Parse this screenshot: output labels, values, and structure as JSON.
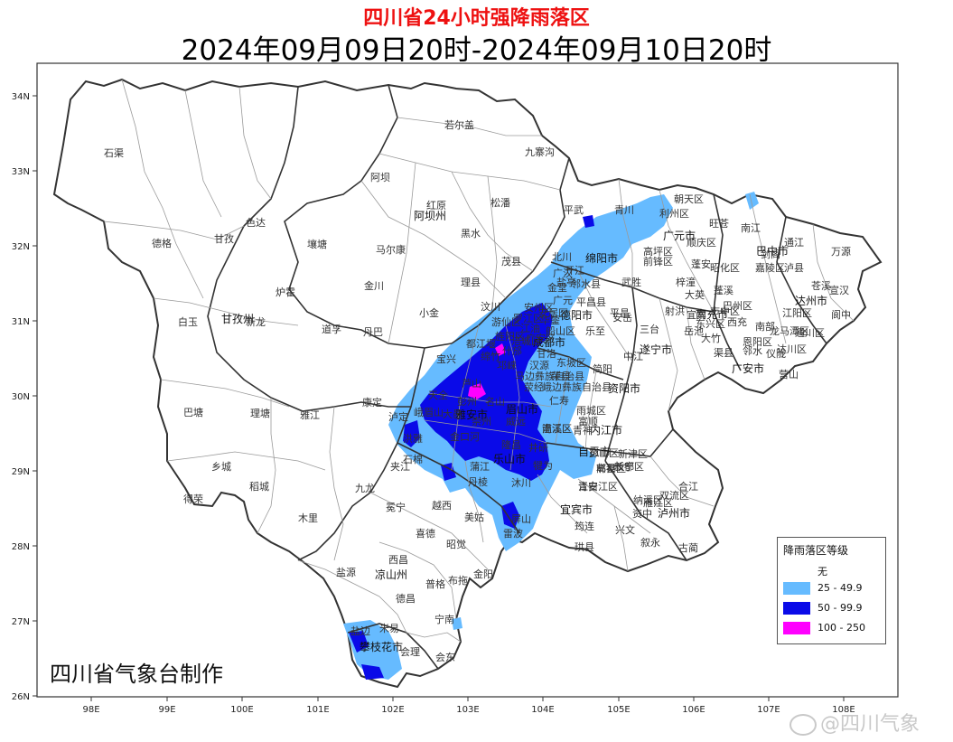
{
  "title": "四川省24小时强降雨落区",
  "subtitle": "2024年09月09日20时-2024年09月10日20时",
  "credit": "四川省气象台制作",
  "watermark": "@四川气象",
  "legend": {
    "title": "降雨落区等级",
    "items": [
      {
        "label": "无",
        "color": "#ffffff"
      },
      {
        "label": "25 - 49.9",
        "color": "#66bbff"
      },
      {
        "label": "50 - 99.9",
        "color": "#0a0ae8"
      },
      {
        "label": "100 - 250",
        "color": "#ff00ff"
      }
    ]
  },
  "axes": {
    "x_ticks": [
      "98E",
      "99E",
      "100E",
      "101E",
      "102E",
      "103E",
      "104E",
      "105E",
      "106E",
      "107E",
      "108E"
    ],
    "y_ticks": [
      "34N",
      "33N",
      "32N",
      "31N",
      "30N",
      "29N",
      "28N",
      "27N",
      "26N"
    ]
  },
  "prefecture_labels": [
    "阿坝州",
    "甘孜州",
    "绵阳市",
    "德阳市",
    "成都市",
    "眉山市",
    "乐山市",
    "资阳市",
    "内江市",
    "自贡市",
    "宜宾市",
    "泸州市",
    "遂宁市",
    "南充市",
    "广安市",
    "达州市",
    "巴中市",
    "广元市",
    "凉山州",
    "攀枝花市",
    "雅安市"
  ],
  "county_labels": [
    "若尔盖",
    "石渠",
    "九寨沟",
    "阿坝",
    "红原",
    "松潘",
    "色达",
    "德格",
    "甘孜",
    "壤塘",
    "马尔康",
    "黑水",
    "平武",
    "青川",
    "朝天区",
    "利州区",
    "旺苍",
    "南江",
    "通江",
    "万源",
    "宣汉",
    "茂县",
    "北川",
    "金川",
    "理县",
    "汶川",
    "炉霍",
    "道孚",
    "丹巴",
    "小金",
    "白玉",
    "新龙",
    "巴塘",
    "理塘",
    "雅江",
    "康定",
    "宝兴",
    "芦山",
    "泸定",
    "石棉",
    "天全",
    "名山",
    "乡城",
    "稻城",
    "得荣",
    "九龙",
    "木里",
    "冕宁",
    "越西",
    "美姑",
    "雷波",
    "喜德",
    "昭觉",
    "西昌",
    "盐源",
    "德昌",
    "普格",
    "布拖",
    "金阳",
    "宁南",
    "会理",
    "会东",
    "米易",
    "盐边",
    "仁寿",
    "井研",
    "犍为",
    "沐川",
    "屏山",
    "筠连",
    "珙县",
    "兴文",
    "叙永",
    "古蔺",
    "合江",
    "纳溪区",
    "江安",
    "长宁",
    "高县",
    "南溪区",
    "富顺",
    "隆昌",
    "威远",
    "荣县",
    "简阳",
    "乐至",
    "安岳",
    "中江",
    "三台",
    "射洪",
    "大英",
    "蓬溪",
    "西充",
    "南部",
    "仪陇",
    "营山",
    "渠县",
    "大竹",
    "邻水",
    "岳池",
    "武胜",
    "前锋区",
    "蓬安",
    "梓潼",
    "剑阁",
    "苍溪",
    "阆中",
    "平昌",
    "开江",
    "盐亭",
    "罗江区",
    "安州区",
    "江油",
    "什邡",
    "绵竹",
    "都江堰",
    "彭州",
    "崇州",
    "大邑",
    "邛崃",
    "蒲江",
    "丹棱",
    "洪雅",
    "夹江",
    "峨眉山",
    "金口河",
    "峨边彝族自治县",
    "马边彝族自治县",
    "汉源",
    "甘洛",
    "荥经",
    "雨城区",
    "青神",
    "东坡区",
    "彭山区",
    "新津区",
    "双流区",
    "雁江区",
    "资中",
    "东兴区",
    "市中区",
    "宜宾",
    "江阳区",
    "龙马潭区",
    "泸县",
    "嘉陵区",
    "高坪区",
    "顺庆区",
    "通川区",
    "达川区",
    "恩阳区",
    "巴州区",
    "昭化区",
    "广元",
    "平昌县",
    "邻水县",
    "华蓥",
    "广安区",
    "船山区",
    "安居区",
    "涪城区",
    "游仙区",
    "旌阳区",
    "广汉",
    "金堂",
    "青白江区",
    "新都区",
    "郫都区",
    "温江区"
  ],
  "colors": {
    "light_blue": "#66bbff",
    "dark_blue": "#0a0ae8",
    "magenta": "#ff00ff",
    "province_border": "#333333",
    "county_border": "#9a9a9a",
    "title_red": "#ee1111"
  }
}
